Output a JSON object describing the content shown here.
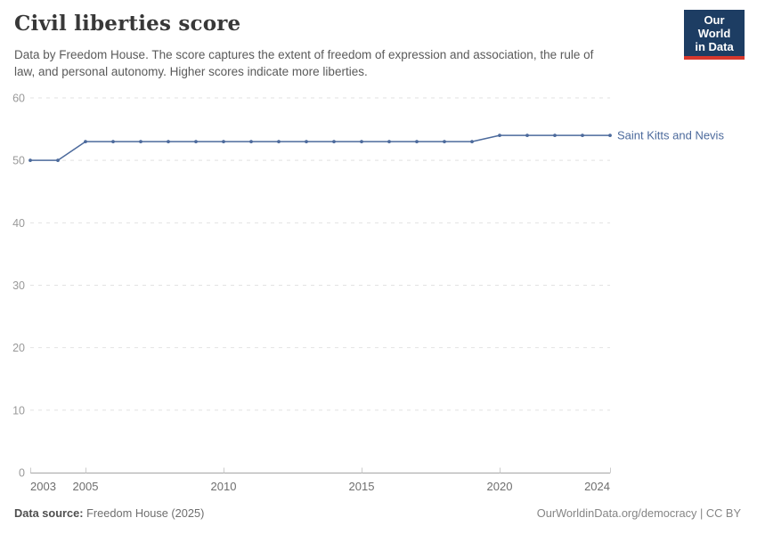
{
  "header": {
    "title": "Civil liberties score",
    "subtitle_lines": [
      "Data by Freedom House. The score captures the extent of freedom of expression and association, the rule of",
      "law, and personal autonomy. Higher scores indicate more liberties."
    ]
  },
  "logo": {
    "line1": "Our World",
    "line2": "in Data",
    "bg_color": "#1d3d63",
    "stripe_color": "#d7382d"
  },
  "footer": {
    "source_label": "Data source:",
    "source_value": "Freedom House (2025)",
    "credit": "OurWorldinData.org/democracy | CC BY"
  },
  "chart_data": {
    "type": "line",
    "title": "Civil liberties score",
    "xlabel": "",
    "ylabel": "",
    "xlim": [
      2003,
      2024
    ],
    "ylim": [
      0,
      60
    ],
    "x_ticks": [
      2003,
      2005,
      2010,
      2015,
      2020,
      2024
    ],
    "y_ticks": [
      0,
      10,
      20,
      30,
      40,
      50,
      60
    ],
    "grid": "horizontal-dashed",
    "legend_position": "end-of-line-label",
    "x": [
      2003,
      2004,
      2005,
      2006,
      2007,
      2008,
      2009,
      2010,
      2011,
      2012,
      2013,
      2014,
      2015,
      2016,
      2017,
      2018,
      2019,
      2020,
      2021,
      2022,
      2023,
      2024
    ],
    "series": [
      {
        "name": "Saint Kitts and Nevis",
        "color": "#4C6A9C",
        "values": [
          50,
          50,
          53,
          53,
          53,
          53,
          53,
          53,
          53,
          53,
          53,
          53,
          53,
          53,
          53,
          53,
          53,
          54,
          54,
          54,
          54,
          54
        ]
      }
    ],
    "axis_color": "#a5a5a5",
    "gridline_color": "#e2e2e2",
    "y_label_color": "#999999",
    "x_label_color": "#6e6e6e"
  }
}
